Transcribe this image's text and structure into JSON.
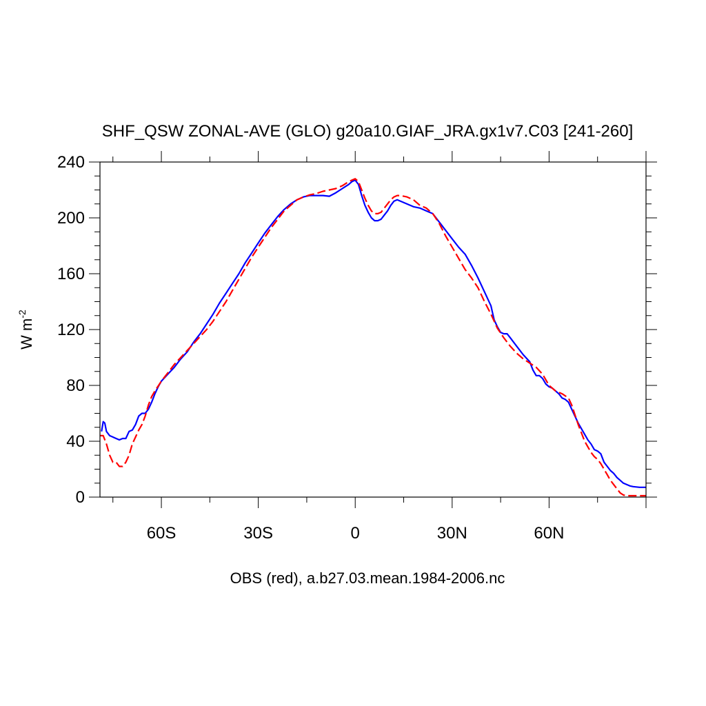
{
  "chart_data": {
    "type": "line",
    "title": "SHF_QSW ZONAL-AVE (GLO) g20a10.GIAF_JRA.gx1v7.C03 [241-260]",
    "xlabel": "OBS (red), a.b27.03.mean.1984-2006.nc",
    "ylabel_base": "W m",
    "ylabel_exp": "-2",
    "xlim": [
      -79,
      90
    ],
    "ylim": [
      0,
      240
    ],
    "x_ticks": [
      {
        "value": -60,
        "label": "60S"
      },
      {
        "value": -30,
        "label": "30S"
      },
      {
        "value": 0,
        "label": "0"
      },
      {
        "value": 30,
        "label": "30N"
      },
      {
        "value": 60,
        "label": "60N"
      }
    ],
    "y_ticks": [
      {
        "value": 0,
        "label": "0"
      },
      {
        "value": 40,
        "label": "40"
      },
      {
        "value": 80,
        "label": "80"
      },
      {
        "value": 120,
        "label": "120"
      },
      {
        "value": 160,
        "label": "160"
      },
      {
        "value": 200,
        "label": "200"
      },
      {
        "value": 240,
        "label": "240"
      }
    ],
    "grid": false,
    "series": [
      {
        "color": "#0000ff",
        "dash": "solid",
        "points": [
          [
            -78.5,
            47
          ],
          [
            -78,
            54
          ],
          [
            -77.5,
            53
          ],
          [
            -77,
            47
          ],
          [
            -76,
            44
          ],
          [
            -75,
            43
          ],
          [
            -74,
            42
          ],
          [
            -73,
            41
          ],
          [
            -72,
            42
          ],
          [
            -71,
            42
          ],
          [
            -70,
            47
          ],
          [
            -69,
            48
          ],
          [
            -68,
            52
          ],
          [
            -67,
            58
          ],
          [
            -66,
            60
          ],
          [
            -65,
            60
          ],
          [
            -64,
            63
          ],
          [
            -63,
            68
          ],
          [
            -62,
            74
          ],
          [
            -61,
            79
          ],
          [
            -60,
            83
          ],
          [
            -58,
            88
          ],
          [
            -56,
            93
          ],
          [
            -54,
            99
          ],
          [
            -52,
            104
          ],
          [
            -50,
            111
          ],
          [
            -48,
            117
          ],
          [
            -46,
            124
          ],
          [
            -44,
            131
          ],
          [
            -42,
            139
          ],
          [
            -40,
            146
          ],
          [
            -38,
            153
          ],
          [
            -36,
            160
          ],
          [
            -34,
            168
          ],
          [
            -32,
            175
          ],
          [
            -30,
            182
          ],
          [
            -28,
            189
          ],
          [
            -26,
            195
          ],
          [
            -24,
            201
          ],
          [
            -22,
            206
          ],
          [
            -20,
            210
          ],
          [
            -18,
            213
          ],
          [
            -16,
            215
          ],
          [
            -14,
            216
          ],
          [
            -12,
            216
          ],
          [
            -10,
            216
          ],
          [
            -8,
            215.5
          ],
          [
            -6,
            218
          ],
          [
            -4,
            221
          ],
          [
            -2,
            224
          ],
          [
            -1,
            226
          ],
          [
            0,
            227
          ],
          [
            1,
            224
          ],
          [
            2,
            216
          ],
          [
            3,
            209
          ],
          [
            4,
            204
          ],
          [
            5,
            200
          ],
          [
            6,
            198
          ],
          [
            7,
            198
          ],
          [
            8,
            199
          ],
          [
            9,
            202
          ],
          [
            10,
            205
          ],
          [
            11,
            209
          ],
          [
            12,
            212
          ],
          [
            13,
            213
          ],
          [
            14,
            212
          ],
          [
            16,
            210
          ],
          [
            18,
            208
          ],
          [
            20,
            207
          ],
          [
            22,
            205
          ],
          [
            24,
            203
          ],
          [
            26,
            197
          ],
          [
            28,
            191
          ],
          [
            30,
            185
          ],
          [
            32,
            179
          ],
          [
            34,
            174
          ],
          [
            36,
            166
          ],
          [
            38,
            157
          ],
          [
            40,
            147
          ],
          [
            42,
            137
          ],
          [
            43,
            127
          ],
          [
            44,
            122
          ],
          [
            45,
            118
          ],
          [
            46,
            117
          ],
          [
            47,
            117
          ],
          [
            48,
            114
          ],
          [
            50,
            108
          ],
          [
            52,
            102
          ],
          [
            54,
            97
          ],
          [
            55,
            91
          ],
          [
            56,
            87
          ],
          [
            57,
            87
          ],
          [
            58,
            85
          ],
          [
            59,
            81
          ],
          [
            60,
            79
          ],
          [
            61,
            78
          ],
          [
            62,
            76
          ],
          [
            63,
            74
          ],
          [
            64,
            71
          ],
          [
            65,
            70
          ],
          [
            66,
            68
          ],
          [
            67,
            63
          ],
          [
            68,
            58
          ],
          [
            69,
            53
          ],
          [
            70,
            49
          ],
          [
            71,
            45
          ],
          [
            72,
            41
          ],
          [
            73,
            38
          ],
          [
            74,
            34
          ],
          [
            75,
            33
          ],
          [
            76,
            31
          ],
          [
            77,
            25
          ],
          [
            78,
            22
          ],
          [
            79,
            19
          ],
          [
            80,
            17
          ],
          [
            81,
            14
          ],
          [
            82,
            12
          ],
          [
            83,
            10
          ],
          [
            84,
            9
          ],
          [
            85,
            8
          ],
          [
            86,
            7.5
          ],
          [
            88,
            7
          ],
          [
            90,
            7
          ]
        ]
      },
      {
        "color": "#ff0000",
        "dash": "dashed",
        "points": [
          [
            -79,
            44
          ],
          [
            -78,
            44
          ],
          [
            -77,
            38
          ],
          [
            -76,
            30
          ],
          [
            -75,
            25
          ],
          [
            -74,
            25
          ],
          [
            -73,
            22
          ],
          [
            -72,
            22
          ],
          [
            -71,
            25
          ],
          [
            -70,
            30
          ],
          [
            -69,
            38
          ],
          [
            -68,
            43
          ],
          [
            -67,
            48
          ],
          [
            -66,
            52
          ],
          [
            -65,
            58
          ],
          [
            -64,
            66
          ],
          [
            -63,
            72
          ],
          [
            -62,
            76
          ],
          [
            -60,
            83
          ],
          [
            -58,
            89
          ],
          [
            -56,
            95
          ],
          [
            -54,
            100
          ],
          [
            -52,
            105
          ],
          [
            -50,
            110
          ],
          [
            -48,
            115
          ],
          [
            -46,
            120
          ],
          [
            -44,
            126
          ],
          [
            -42,
            133
          ],
          [
            -40,
            140
          ],
          [
            -38,
            148
          ],
          [
            -36,
            156
          ],
          [
            -34,
            164
          ],
          [
            -32,
            172
          ],
          [
            -30,
            179
          ],
          [
            -28,
            186
          ],
          [
            -26,
            193
          ],
          [
            -24,
            199
          ],
          [
            -22,
            205
          ],
          [
            -20,
            209
          ],
          [
            -18,
            213
          ],
          [
            -16,
            215
          ],
          [
            -14,
            216.5
          ],
          [
            -12,
            217.5
          ],
          [
            -10,
            219
          ],
          [
            -8,
            220
          ],
          [
            -6,
            221
          ],
          [
            -4,
            223
          ],
          [
            -2,
            226
          ],
          [
            -1,
            227
          ],
          [
            0,
            228
          ],
          [
            1,
            226
          ],
          [
            2,
            220
          ],
          [
            3,
            214
          ],
          [
            4,
            209
          ],
          [
            5,
            205
          ],
          [
            6,
            203
          ],
          [
            7,
            203
          ],
          [
            8,
            204
          ],
          [
            9,
            207
          ],
          [
            10,
            210
          ],
          [
            11,
            213
          ],
          [
            12,
            215
          ],
          [
            13,
            216
          ],
          [
            14,
            216
          ],
          [
            16,
            215
          ],
          [
            18,
            213
          ],
          [
            20,
            209
          ],
          [
            22,
            207
          ],
          [
            24,
            203
          ],
          [
            26,
            196
          ],
          [
            28,
            187
          ],
          [
            30,
            179
          ],
          [
            32,
            171
          ],
          [
            34,
            163
          ],
          [
            36,
            157
          ],
          [
            38,
            150
          ],
          [
            40,
            140
          ],
          [
            42,
            131
          ],
          [
            44,
            121
          ],
          [
            46,
            114
          ],
          [
            48,
            108
          ],
          [
            50,
            103
          ],
          [
            52,
            99
          ],
          [
            54,
            96
          ],
          [
            56,
            93
          ],
          [
            58,
            88
          ],
          [
            60,
            80
          ],
          [
            62,
            76
          ],
          [
            64,
            74
          ],
          [
            66,
            71
          ],
          [
            67,
            66
          ],
          [
            68,
            59
          ],
          [
            69,
            52
          ],
          [
            70,
            46
          ],
          [
            71,
            40
          ],
          [
            72,
            36
          ],
          [
            73,
            32
          ],
          [
            74,
            29
          ],
          [
            75,
            27
          ],
          [
            76,
            24
          ],
          [
            77,
            20
          ],
          [
            78,
            16
          ],
          [
            79,
            12
          ],
          [
            80,
            9
          ],
          [
            81,
            6
          ],
          [
            82,
            3
          ],
          [
            83,
            1.5
          ],
          [
            84,
            1
          ],
          [
            85,
            1
          ],
          [
            88,
            1
          ],
          [
            90,
            1
          ]
        ]
      }
    ]
  }
}
